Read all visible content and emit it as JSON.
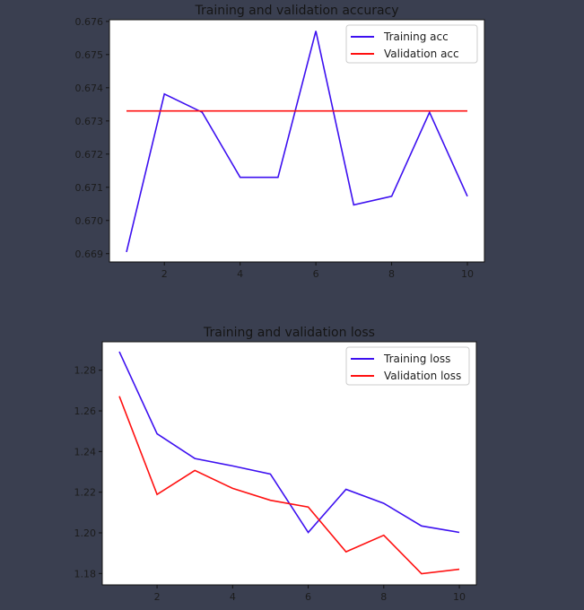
{
  "background_color": "#3a3f50",
  "chart_data": [
    {
      "type": "line",
      "title": "Training and validation accuracy",
      "x": [
        1,
        2,
        3,
        4,
        5,
        6,
        7,
        8,
        9,
        10
      ],
      "xticks": [
        2,
        4,
        6,
        8,
        10
      ],
      "xlim": [
        0.55,
        10.45
      ],
      "ylim": [
        0.66875,
        0.67605
      ],
      "yticks": [
        0.669,
        0.67,
        0.671,
        0.672,
        0.673,
        0.674,
        0.675,
        0.676
      ],
      "ytick_labels": [
        "0.669",
        "0.670",
        "0.671",
        "0.672",
        "0.673",
        "0.674",
        "0.675",
        "0.676"
      ],
      "grid": false,
      "legend_position": "top-right",
      "series": [
        {
          "name": "Training acc",
          "color": "#3d10f0",
          "values": [
            0.66905,
            0.67381,
            0.67326,
            0.6713,
            0.6713,
            0.67571,
            0.67047,
            0.67073,
            0.67326,
            0.67073
          ]
        },
        {
          "name": "Validation acc",
          "color": "#ff1010",
          "values": [
            0.6733,
            0.6733,
            0.6733,
            0.6733,
            0.6733,
            0.6733,
            0.6733,
            0.6733,
            0.6733,
            0.6733
          ]
        }
      ]
    },
    {
      "type": "line",
      "title": "Training and validation loss",
      "x": [
        1,
        2,
        3,
        4,
        5,
        6,
        7,
        8,
        9,
        10
      ],
      "xticks": [
        2,
        4,
        6,
        8,
        10
      ],
      "xlim": [
        0.55,
        10.45
      ],
      "ylim": [
        1.1744,
        1.294
      ],
      "yticks": [
        1.18,
        1.2,
        1.22,
        1.24,
        1.26,
        1.28
      ],
      "ytick_labels": [
        "1.18",
        "1.20",
        "1.22",
        "1.24",
        "1.26",
        "1.28"
      ],
      "grid": false,
      "legend_position": "top-right",
      "series": [
        {
          "name": "Training loss",
          "color": "#3d10f0",
          "values": [
            1.2891,
            1.2487,
            1.2366,
            1.2329,
            1.2289,
            1.2002,
            1.2214,
            1.2145,
            1.2034,
            1.2002
          ]
        },
        {
          "name": "Validation loss",
          "color": "#ff1010",
          "values": [
            1.2672,
            1.2189,
            1.2307,
            1.2219,
            1.216,
            1.2127,
            1.1907,
            1.1988,
            1.1799,
            1.1821
          ]
        }
      ]
    }
  ]
}
